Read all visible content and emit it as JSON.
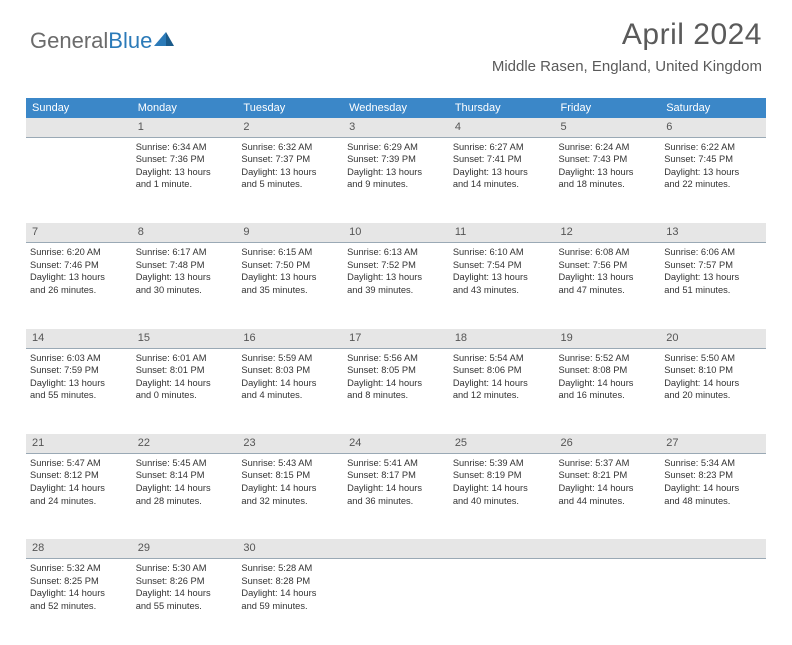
{
  "brand": {
    "part1": "General",
    "part2": "Blue"
  },
  "title": "April 2024",
  "location": "Middle Rasen, England, United Kingdom",
  "colors": {
    "header_bg": "#3b87c8",
    "header_text": "#ffffff",
    "daynum_bg": "#e6e6e6",
    "daynum_border": "#9aa9b5",
    "text": "#333333",
    "brand_gray": "#6b6b6b",
    "brand_blue": "#2b7ab8",
    "title_color": "#5a5a5a"
  },
  "weekdays": [
    "Sunday",
    "Monday",
    "Tuesday",
    "Wednesday",
    "Thursday",
    "Friday",
    "Saturday"
  ],
  "weeks": [
    {
      "nums": [
        "",
        "1",
        "2",
        "3",
        "4",
        "5",
        "6"
      ],
      "cells": [
        {
          "empty": true
        },
        {
          "sunrise": "Sunrise: 6:34 AM",
          "sunset": "Sunset: 7:36 PM",
          "day1": "Daylight: 13 hours",
          "day2": "and 1 minute."
        },
        {
          "sunrise": "Sunrise: 6:32 AM",
          "sunset": "Sunset: 7:37 PM",
          "day1": "Daylight: 13 hours",
          "day2": "and 5 minutes."
        },
        {
          "sunrise": "Sunrise: 6:29 AM",
          "sunset": "Sunset: 7:39 PM",
          "day1": "Daylight: 13 hours",
          "day2": "and 9 minutes."
        },
        {
          "sunrise": "Sunrise: 6:27 AM",
          "sunset": "Sunset: 7:41 PM",
          "day1": "Daylight: 13 hours",
          "day2": "and 14 minutes."
        },
        {
          "sunrise": "Sunrise: 6:24 AM",
          "sunset": "Sunset: 7:43 PM",
          "day1": "Daylight: 13 hours",
          "day2": "and 18 minutes."
        },
        {
          "sunrise": "Sunrise: 6:22 AM",
          "sunset": "Sunset: 7:45 PM",
          "day1": "Daylight: 13 hours",
          "day2": "and 22 minutes."
        }
      ]
    },
    {
      "nums": [
        "7",
        "8",
        "9",
        "10",
        "11",
        "12",
        "13"
      ],
      "cells": [
        {
          "sunrise": "Sunrise: 6:20 AM",
          "sunset": "Sunset: 7:46 PM",
          "day1": "Daylight: 13 hours",
          "day2": "and 26 minutes."
        },
        {
          "sunrise": "Sunrise: 6:17 AM",
          "sunset": "Sunset: 7:48 PM",
          "day1": "Daylight: 13 hours",
          "day2": "and 30 minutes."
        },
        {
          "sunrise": "Sunrise: 6:15 AM",
          "sunset": "Sunset: 7:50 PM",
          "day1": "Daylight: 13 hours",
          "day2": "and 35 minutes."
        },
        {
          "sunrise": "Sunrise: 6:13 AM",
          "sunset": "Sunset: 7:52 PM",
          "day1": "Daylight: 13 hours",
          "day2": "and 39 minutes."
        },
        {
          "sunrise": "Sunrise: 6:10 AM",
          "sunset": "Sunset: 7:54 PM",
          "day1": "Daylight: 13 hours",
          "day2": "and 43 minutes."
        },
        {
          "sunrise": "Sunrise: 6:08 AM",
          "sunset": "Sunset: 7:56 PM",
          "day1": "Daylight: 13 hours",
          "day2": "and 47 minutes."
        },
        {
          "sunrise": "Sunrise: 6:06 AM",
          "sunset": "Sunset: 7:57 PM",
          "day1": "Daylight: 13 hours",
          "day2": "and 51 minutes."
        }
      ]
    },
    {
      "nums": [
        "14",
        "15",
        "16",
        "17",
        "18",
        "19",
        "20"
      ],
      "cells": [
        {
          "sunrise": "Sunrise: 6:03 AM",
          "sunset": "Sunset: 7:59 PM",
          "day1": "Daylight: 13 hours",
          "day2": "and 55 minutes."
        },
        {
          "sunrise": "Sunrise: 6:01 AM",
          "sunset": "Sunset: 8:01 PM",
          "day1": "Daylight: 14 hours",
          "day2": "and 0 minutes."
        },
        {
          "sunrise": "Sunrise: 5:59 AM",
          "sunset": "Sunset: 8:03 PM",
          "day1": "Daylight: 14 hours",
          "day2": "and 4 minutes."
        },
        {
          "sunrise": "Sunrise: 5:56 AM",
          "sunset": "Sunset: 8:05 PM",
          "day1": "Daylight: 14 hours",
          "day2": "and 8 minutes."
        },
        {
          "sunrise": "Sunrise: 5:54 AM",
          "sunset": "Sunset: 8:06 PM",
          "day1": "Daylight: 14 hours",
          "day2": "and 12 minutes."
        },
        {
          "sunrise": "Sunrise: 5:52 AM",
          "sunset": "Sunset: 8:08 PM",
          "day1": "Daylight: 14 hours",
          "day2": "and 16 minutes."
        },
        {
          "sunrise": "Sunrise: 5:50 AM",
          "sunset": "Sunset: 8:10 PM",
          "day1": "Daylight: 14 hours",
          "day2": "and 20 minutes."
        }
      ]
    },
    {
      "nums": [
        "21",
        "22",
        "23",
        "24",
        "25",
        "26",
        "27"
      ],
      "cells": [
        {
          "sunrise": "Sunrise: 5:47 AM",
          "sunset": "Sunset: 8:12 PM",
          "day1": "Daylight: 14 hours",
          "day2": "and 24 minutes."
        },
        {
          "sunrise": "Sunrise: 5:45 AM",
          "sunset": "Sunset: 8:14 PM",
          "day1": "Daylight: 14 hours",
          "day2": "and 28 minutes."
        },
        {
          "sunrise": "Sunrise: 5:43 AM",
          "sunset": "Sunset: 8:15 PM",
          "day1": "Daylight: 14 hours",
          "day2": "and 32 minutes."
        },
        {
          "sunrise": "Sunrise: 5:41 AM",
          "sunset": "Sunset: 8:17 PM",
          "day1": "Daylight: 14 hours",
          "day2": "and 36 minutes."
        },
        {
          "sunrise": "Sunrise: 5:39 AM",
          "sunset": "Sunset: 8:19 PM",
          "day1": "Daylight: 14 hours",
          "day2": "and 40 minutes."
        },
        {
          "sunrise": "Sunrise: 5:37 AM",
          "sunset": "Sunset: 8:21 PM",
          "day1": "Daylight: 14 hours",
          "day2": "and 44 minutes."
        },
        {
          "sunrise": "Sunrise: 5:34 AM",
          "sunset": "Sunset: 8:23 PM",
          "day1": "Daylight: 14 hours",
          "day2": "and 48 minutes."
        }
      ]
    },
    {
      "nums": [
        "28",
        "29",
        "30",
        "",
        "",
        "",
        ""
      ],
      "cells": [
        {
          "sunrise": "Sunrise: 5:32 AM",
          "sunset": "Sunset: 8:25 PM",
          "day1": "Daylight: 14 hours",
          "day2": "and 52 minutes."
        },
        {
          "sunrise": "Sunrise: 5:30 AM",
          "sunset": "Sunset: 8:26 PM",
          "day1": "Daylight: 14 hours",
          "day2": "and 55 minutes."
        },
        {
          "sunrise": "Sunrise: 5:28 AM",
          "sunset": "Sunset: 8:28 PM",
          "day1": "Daylight: 14 hours",
          "day2": "and 59 minutes."
        },
        {
          "empty": true
        },
        {
          "empty": true
        },
        {
          "empty": true
        },
        {
          "empty": true
        }
      ]
    }
  ]
}
